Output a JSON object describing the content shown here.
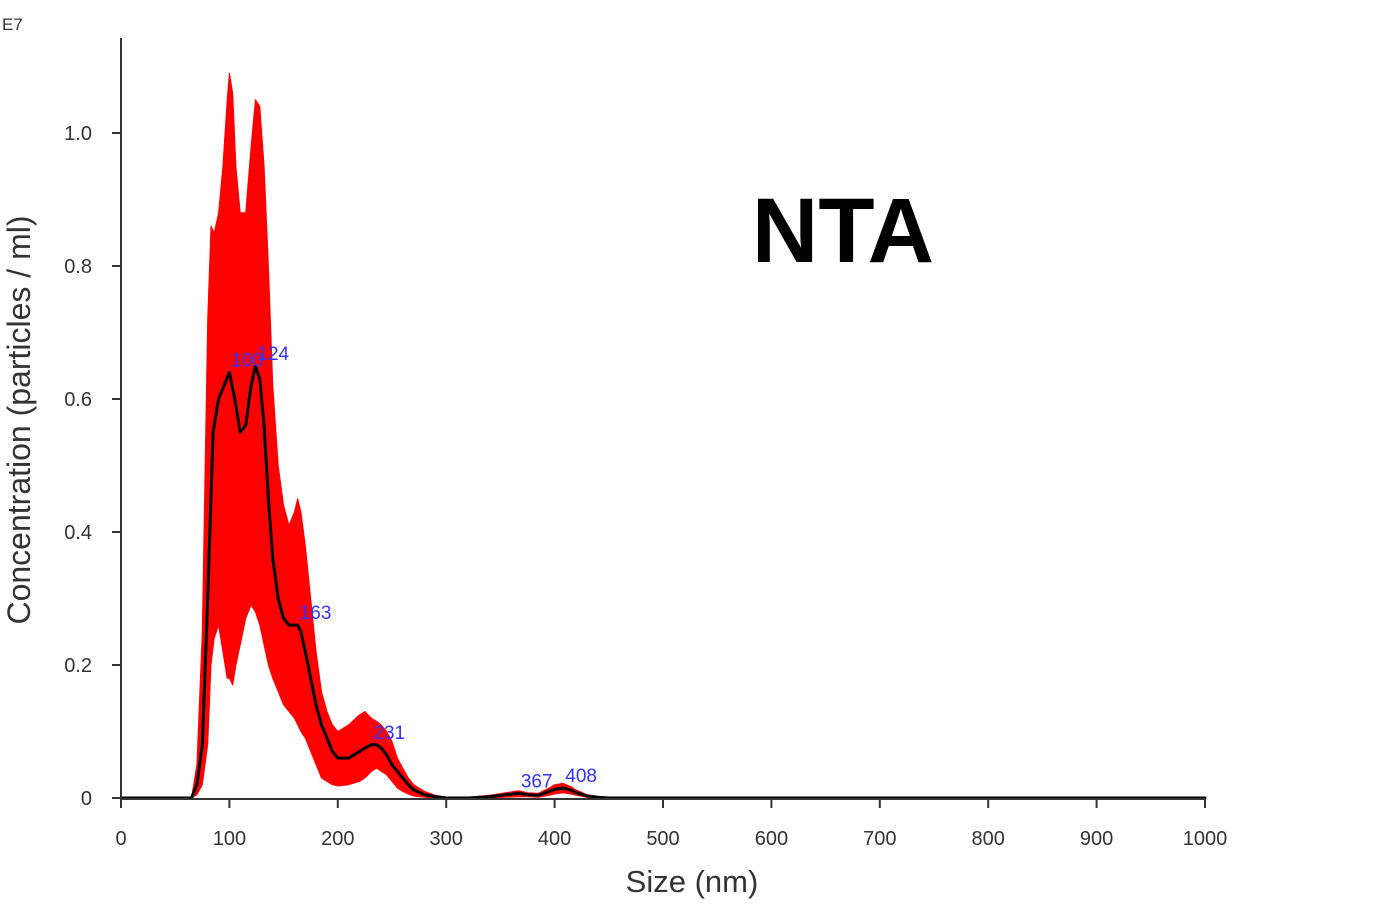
{
  "chart_data": {
    "type": "line",
    "title": "NTA",
    "xlabel": "Size (nm)",
    "ylabel": "Concentration (particles / ml)",
    "y_multiplier": "E7",
    "xlim": [
      0,
      1000
    ],
    "ylim": [
      0,
      1.1
    ],
    "x_ticks": [
      "0",
      "100",
      "200",
      "300",
      "400",
      "500",
      "600",
      "700",
      "800",
      "900",
      "1000"
    ],
    "x_tick_values": [
      0,
      100,
      200,
      300,
      400,
      500,
      600,
      700,
      800,
      900,
      1000
    ],
    "y_ticks": [
      "0",
      "0.2",
      "0.4",
      "0.6",
      "0.8",
      "1.0"
    ],
    "y_tick_values": [
      0,
      0.2,
      0.4,
      0.6,
      0.8,
      1.0
    ],
    "grid": false,
    "colors": {
      "mean_line": "#000000",
      "error_band": "#ff0000",
      "peak_labels": "#3333ff",
      "axes": "#333333"
    },
    "mean_series": {
      "x": [
        0,
        65,
        70,
        75,
        80,
        85,
        90,
        95,
        100,
        105,
        110,
        115,
        120,
        124,
        128,
        132,
        136,
        140,
        145,
        150,
        155,
        160,
        163,
        166,
        170,
        175,
        180,
        185,
        190,
        195,
        200,
        205,
        210,
        215,
        220,
        225,
        231,
        236,
        240,
        245,
        250,
        255,
        260,
        265,
        270,
        280,
        290,
        300,
        320,
        340,
        355,
        367,
        375,
        385,
        395,
        400,
        408,
        415,
        420,
        430,
        440,
        450,
        470,
        1000
      ],
      "y": [
        0,
        0,
        0.02,
        0.08,
        0.3,
        0.55,
        0.6,
        0.62,
        0.64,
        0.6,
        0.55,
        0.56,
        0.62,
        0.65,
        0.63,
        0.56,
        0.45,
        0.36,
        0.3,
        0.27,
        0.26,
        0.26,
        0.26,
        0.25,
        0.22,
        0.18,
        0.14,
        0.11,
        0.09,
        0.07,
        0.06,
        0.06,
        0.06,
        0.065,
        0.07,
        0.075,
        0.08,
        0.08,
        0.075,
        0.065,
        0.05,
        0.04,
        0.03,
        0.02,
        0.012,
        0.005,
        0.002,
        0,
        0,
        0.002,
        0.005,
        0.007,
        0.005,
        0.004,
        0.01,
        0.013,
        0.015,
        0.012,
        0.008,
        0.003,
        0.001,
        0,
        0,
        0
      ]
    },
    "error_band": {
      "x": [
        0,
        65,
        70,
        75,
        80,
        83,
        86,
        90,
        94,
        98,
        100,
        103,
        106,
        110,
        115,
        120,
        124,
        128,
        132,
        136,
        140,
        145,
        150,
        155,
        160,
        163,
        166,
        170,
        175,
        180,
        185,
        190,
        195,
        200,
        210,
        220,
        225,
        231,
        236,
        240,
        245,
        250,
        255,
        260,
        265,
        270,
        280,
        290,
        300,
        320,
        340,
        355,
        367,
        375,
        385,
        395,
        400,
        408,
        415,
        420,
        430,
        440,
        450,
        470,
        1000
      ],
      "upper": [
        0,
        0,
        0.05,
        0.25,
        0.72,
        0.86,
        0.85,
        0.88,
        0.95,
        1.05,
        1.09,
        1.06,
        0.95,
        0.88,
        0.88,
        0.98,
        1.05,
        1.04,
        0.95,
        0.8,
        0.62,
        0.5,
        0.44,
        0.41,
        0.43,
        0.45,
        0.43,
        0.38,
        0.3,
        0.22,
        0.16,
        0.13,
        0.11,
        0.1,
        0.11,
        0.125,
        0.13,
        0.12,
        0.115,
        0.11,
        0.1,
        0.085,
        0.06,
        0.045,
        0.03,
        0.02,
        0.01,
        0.004,
        0.001,
        0.001,
        0.004,
        0.008,
        0.011,
        0.008,
        0.007,
        0.015,
        0.02,
        0.022,
        0.017,
        0.012,
        0.005,
        0.002,
        0.001,
        0,
        0
      ],
      "lower": [
        0,
        0,
        0.005,
        0.02,
        0.08,
        0.2,
        0.24,
        0.26,
        0.22,
        0.18,
        0.18,
        0.17,
        0.2,
        0.23,
        0.27,
        0.29,
        0.28,
        0.26,
        0.23,
        0.2,
        0.18,
        0.16,
        0.14,
        0.13,
        0.12,
        0.11,
        0.1,
        0.09,
        0.07,
        0.05,
        0.03,
        0.025,
        0.02,
        0.018,
        0.02,
        0.025,
        0.03,
        0.04,
        0.045,
        0.04,
        0.035,
        0.025,
        0.015,
        0.01,
        0.006,
        0.003,
        0.001,
        0,
        0,
        0,
        0,
        0.001,
        0.002,
        0.002,
        0.001,
        0.004,
        0.006,
        0.008,
        0.006,
        0.004,
        0.001,
        0,
        0,
        0,
        0
      ]
    },
    "peak_labels": [
      {
        "text": "100",
        "x": 100,
        "y": 0.64
      },
      {
        "text": "124",
        "x": 124,
        "y": 0.65
      },
      {
        "text": "163",
        "x": 163,
        "y": 0.26
      },
      {
        "text": "231",
        "x": 231,
        "y": 0.08
      },
      {
        "text": "367",
        "x": 367,
        "y": 0.007
      },
      {
        "text": "408",
        "x": 408,
        "y": 0.015
      }
    ]
  }
}
